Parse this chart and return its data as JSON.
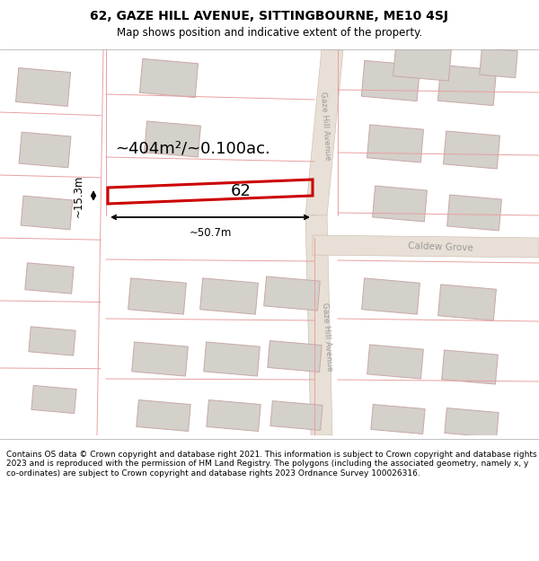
{
  "title": "62, GAZE HILL AVENUE, SITTINGBOURNE, ME10 4SJ",
  "subtitle": "Map shows position and indicative extent of the property.",
  "footer": "Contains OS data © Crown copyright and database right 2021. This information is subject to Crown copyright and database rights 2023 and is reproduced with the permission of HM Land Registry. The polygons (including the associated geometry, namely x, y co-ordinates) are subject to Crown copyright and database rights 2023 Ordnance Survey 100026316.",
  "plot_color": "#cc0000",
  "plot_label": "62",
  "area_text": "~404m²/~0.100ac.",
  "width_text": "~50.7m",
  "height_text": "~15.3m",
  "road_label_upper": "Gaze Hill Avenue",
  "road_label_lower": "Gaze Hill Avenue",
  "road_label_cross": "Caldew Grove",
  "map_bg": "#f2efec",
  "road_fill": "#e8e0d6",
  "bld_fill": "#d4d0ca",
  "bld_edge": "#c8a8a8",
  "plot_line": "#e8a0a0",
  "title_fontsize": 10,
  "subtitle_fontsize": 8.5,
  "footer_fontsize": 6.5
}
